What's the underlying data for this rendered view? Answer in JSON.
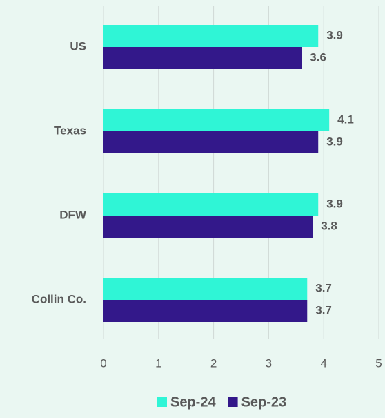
{
  "chart_data": {
    "type": "bar",
    "orientation": "horizontal",
    "categories": [
      "US",
      "Texas",
      "DFW",
      "Collin Co."
    ],
    "series": [
      {
        "name": "Sep-24",
        "color": "#2ff5d6",
        "values": [
          3.9,
          4.1,
          3.9,
          3.7
        ]
      },
      {
        "name": "Sep-23",
        "color": "#33188a",
        "values": [
          3.6,
          3.9,
          3.8,
          3.7
        ]
      }
    ],
    "xlim": [
      0,
      5
    ],
    "xticks": [
      0,
      1,
      2,
      3,
      4,
      5
    ],
    "grid": true,
    "legend": "bottom"
  }
}
